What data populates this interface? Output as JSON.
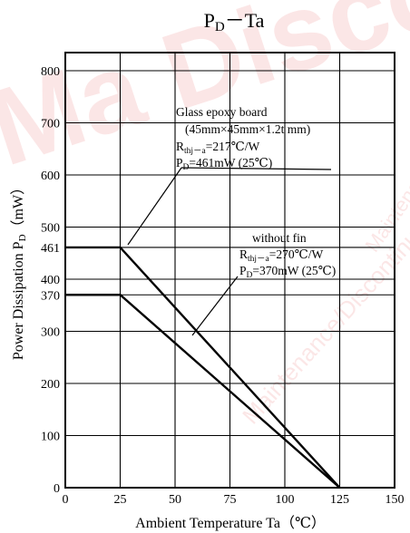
{
  "chart_data": {
    "type": "line",
    "title_main": "P",
    "title_sub": "D",
    "title_rest": "－Ta",
    "xlabel": "Ambient Temperature  Ta（℃）",
    "ylabel": "Power Dissipation P",
    "ylabel_sub": "D",
    "ylabel_unit": "（mW）",
    "xlim": [
      0,
      150
    ],
    "ylim": [
      0,
      850
    ],
    "grid": true,
    "x_ticks": [
      0,
      25,
      50,
      75,
      100,
      125,
      150
    ],
    "y_ticks": [
      0,
      100,
      200,
      300,
      370,
      400,
      461,
      500,
      600,
      700,
      800
    ],
    "series": [
      {
        "name": "Glass epoxy board",
        "x": [
          0,
          25,
          125
        ],
        "y": [
          461,
          461,
          0
        ],
        "annotation": {
          "line1": "Glass epoxy board",
          "line2": "(45mm×45mm×1.2t mm)",
          "line3_main": "R",
          "line3_sub": "thj－a",
          "line3_rest": "=217℃/W",
          "line4_main": "P",
          "line4_sub": "D",
          "line4_rest": "=461mW (25℃)"
        }
      },
      {
        "name": "without fin",
        "x": [
          0,
          25,
          125
        ],
        "y": [
          370,
          370,
          0
        ],
        "annotation": {
          "line1": "without fin",
          "line3_main": "R",
          "line3_sub": "thj－a",
          "line3_rest": "=270℃/W",
          "line4_main": "P",
          "line4_sub": "D",
          "line4_rest": "=370mW (25℃)"
        }
      }
    ]
  },
  "watermark": {
    "large": "Ma Disco",
    "diagonal_1": "Maintenance/Discontinued",
    "diagonal_2": "Maintenance/Discontinued"
  }
}
